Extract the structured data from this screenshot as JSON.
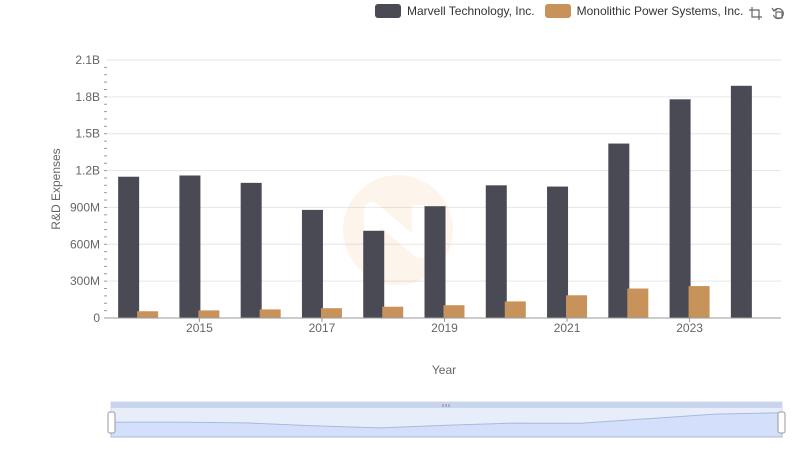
{
  "legend": [
    {
      "name": "Marvell Technology, Inc.",
      "color": "#4a4a55"
    },
    {
      "name": "Monolithic Power Systems, Inc.",
      "color": "#c8935b"
    }
  ],
  "toolbox": {
    "zoom_icon": "zoom-select-icon",
    "reset_icon": "zoom-reset-icon"
  },
  "chart_data": {
    "type": "bar",
    "xlabel": "Year",
    "ylabel": "R&D Expenses",
    "ylim": [
      0,
      2100000000
    ],
    "yticks": [
      "0",
      "300M",
      "600M",
      "900M",
      "1.2B",
      "1.5B",
      "1.8B",
      "2.1B"
    ],
    "categories": [
      "2014",
      "2015",
      "2016",
      "2017",
      "2018",
      "2019",
      "2020",
      "2021",
      "2022",
      "2023",
      "2024"
    ],
    "xtick_labels": [
      "2015",
      "2017",
      "2019",
      "2021",
      "2023"
    ],
    "series": [
      {
        "name": "Marvell Technology, Inc.",
        "color": "#4a4a55",
        "values": [
          1150000000,
          1160000000,
          1100000000,
          880000000,
          710000000,
          910000000,
          1080000000,
          1070000000,
          1420000000,
          1780000000,
          1890000000
        ]
      },
      {
        "name": "Monolithic Power Systems, Inc.",
        "color": "#c8935b",
        "values": [
          55000000,
          62000000,
          70000000,
          80000000,
          92000000,
          104000000,
          135000000,
          185000000,
          240000000,
          260000000,
          null
        ]
      }
    ],
    "grid": true
  }
}
